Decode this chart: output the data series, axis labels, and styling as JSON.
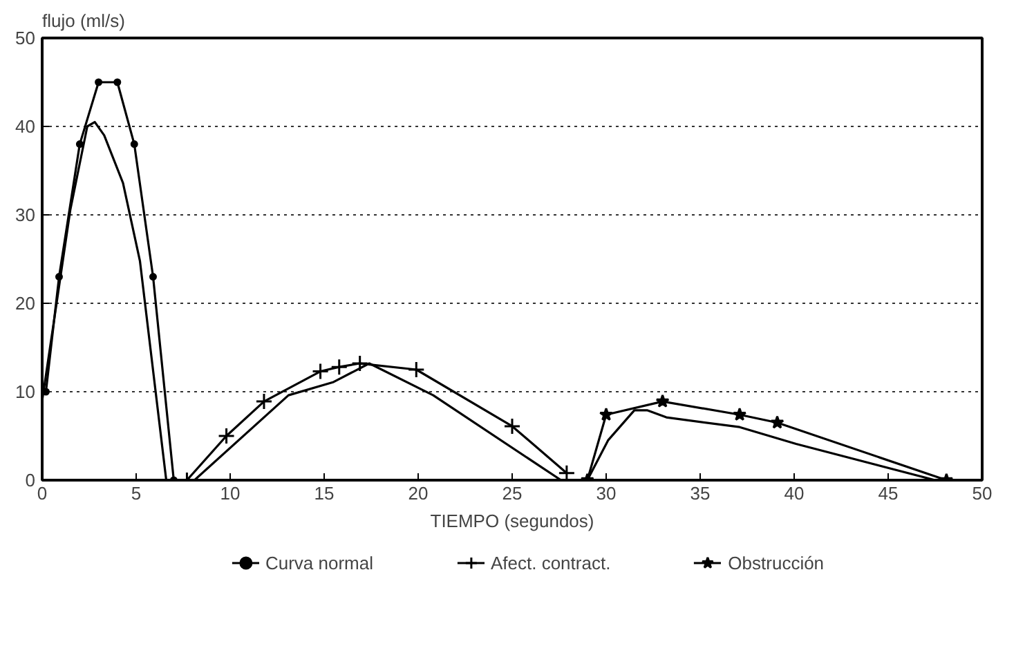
{
  "chart_data": {
    "type": "line",
    "ylabel": "flujo (ml/s)",
    "xlabel": "TIEMPO (segundos)",
    "xlim": [
      0,
      50
    ],
    "xticks": [
      0,
      5,
      10,
      15,
      20,
      25,
      30,
      35,
      40,
      45,
      50
    ],
    "ylim": [
      0,
      50
    ],
    "yticks": [
      0,
      10,
      20,
      30,
      40,
      50
    ],
    "grid": "y",
    "legend": "bottom",
    "series": [
      {
        "name": "Curva normal",
        "color": "#000000",
        "marker": "circle",
        "x": [
          0.2,
          0.9,
          2.0,
          3.0,
          4.0,
          4.9,
          5.9,
          7.0
        ],
        "values": [
          10,
          23,
          38,
          45,
          45,
          38,
          23,
          0
        ]
      },
      {
        "color": "#000000",
        "marker": "none",
        "x": [
          0,
          0.6,
          1.5,
          2.4,
          2.8,
          3.3,
          4.3,
          5.2,
          6.6
        ],
        "values": [
          9,
          17.6,
          30.6,
          40,
          40.5,
          39,
          33.6,
          24.8,
          0
        ]
      },
      {
        "name": "Afect. contract.",
        "color": "#000000",
        "marker": "cross",
        "x": [
          7.7,
          9.8,
          11.8,
          14.8,
          15.8,
          16.9,
          19.9,
          25.0,
          27.9
        ],
        "values": [
          0,
          5,
          8.9,
          12.3,
          12.8,
          13.2,
          12.5,
          6.1,
          0.8
        ]
      },
      {
        "color": "#000000",
        "marker": "none",
        "x": [
          8.1,
          13.1,
          15.5,
          17.4,
          20.8,
          27.6
        ],
        "values": [
          0,
          9.6,
          11.1,
          13.2,
          9.6,
          0
        ]
      },
      {
        "name": "Obstrucción",
        "color": "#000000",
        "marker": "star",
        "x": [
          29.0,
          30.0,
          33.0,
          37.1,
          39.1,
          48.1
        ],
        "values": [
          0,
          7.4,
          8.9,
          7.4,
          6.5,
          0
        ]
      },
      {
        "color": "#000000",
        "marker": "none",
        "x": [
          29.0,
          30.1,
          31.5,
          32.2,
          33.2,
          37.1,
          40.1,
          47.5
        ],
        "values": [
          0,
          4.5,
          7.9,
          7.9,
          7.1,
          6.0,
          4.1,
          0
        ]
      }
    ]
  }
}
